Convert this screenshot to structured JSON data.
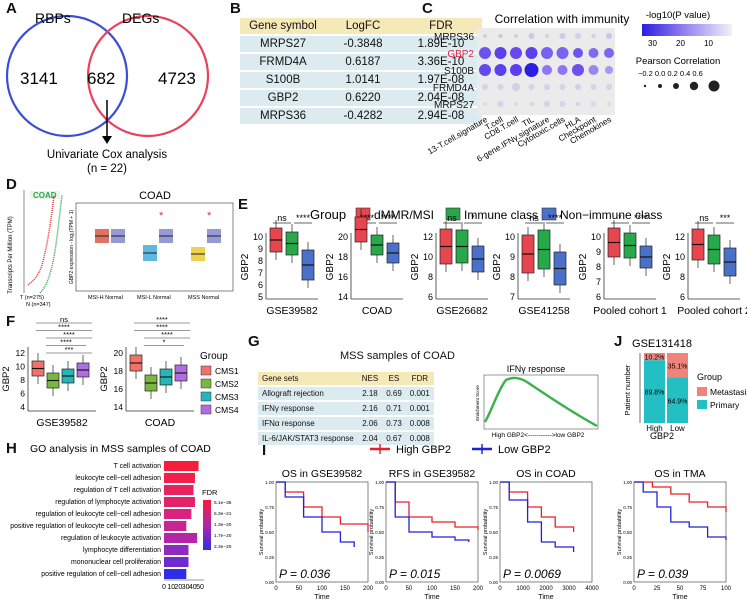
{
  "panels": {
    "A": "A",
    "B": "B",
    "C": "C",
    "D": "D",
    "E": "E",
    "F": "F",
    "G": "G",
    "H": "H",
    "I": "I",
    "J": "J"
  },
  "colors": {
    "red": "#e8464f",
    "green": "#27a84a",
    "blue": "#4a70c8",
    "rbp_circle": "#3b4fd6",
    "deg_circle": "#e8425f"
  },
  "venn": {
    "left_label": "RBPs",
    "right_label": "DEGs",
    "left_only": "3141",
    "overlap": "682",
    "right_only": "4723",
    "arrow_text": "Univariate Cox analysis",
    "arrow_subtext": "(n = 22)"
  },
  "table_b": {
    "headers": [
      "Gene symbol",
      "LogFC",
      "FDR"
    ],
    "rows": [
      [
        "MRPS27",
        "-0.3848",
        "1.89E-10"
      ],
      [
        "FRMD4A",
        "0.6187",
        "3.36E-10"
      ],
      [
        "S100B",
        "1.0141",
        "1.97E-08"
      ],
      [
        "GBP2",
        "0.6220",
        "2.04E-08"
      ],
      [
        "MRPS36",
        "-0.4282",
        "2.94E-08"
      ]
    ]
  },
  "panel_c": {
    "title": "Correlation with immunity",
    "genes": [
      "MRPS36",
      "GBP2",
      "S100B",
      "FRMD4A",
      "MRPS27"
    ],
    "signatures": [
      "13-T.cell.signature",
      "T.cell",
      "CD8.T.cell",
      "TIL",
      "6-gene.IFNγ.signature",
      "Cytotoxic.cells",
      "HLA",
      "Checkpoint",
      "Chemokines"
    ],
    "legend_title": "-log10(P value)",
    "legend_ticks": [
      "30",
      "20",
      "10"
    ],
    "size_title": "Pearson Correlation",
    "size_ticks": "−0.2 0.0 0.2 0.4 0.6"
  },
  "panel_d": {
    "ylabel": "Transcripts Per Million (TPM)",
    "cohort": "COAD",
    "t_label": "T (n=275)",
    "n_label": "N (n=347)",
    "box_title": "COAD",
    "box_ylabel": "GBP2 expression - log₂(TPM + 1)",
    "box_x": [
      "MSI-H Normal",
      "MSI-L Normal",
      "MSS Normal"
    ]
  },
  "legend_e": {
    "title": "Group",
    "items": [
      "dMMR/MSI",
      "Immune class",
      "Non−immune class"
    ]
  },
  "panel_e": [
    {
      "xlabel": "GSE39582",
      "ylabel": "GBP2",
      "ticks": [
        "10",
        "9",
        "8",
        "7",
        "6",
        "5"
      ],
      "sig": [
        "ns",
        "****"
      ],
      "has_green": true
    },
    {
      "xlabel": "COAD",
      "ylabel": "GBP2",
      "ticks": [
        "20",
        "18",
        "16",
        "14"
      ],
      "sig": [
        "****",
        "****"
      ],
      "has_green": true
    },
    {
      "xlabel": "GSE26682",
      "ylabel": "GBP2",
      "ticks": [
        "12",
        "10",
        "8",
        "6"
      ],
      "sig": [
        "ns",
        "*"
      ],
      "has_green": true
    },
    {
      "xlabel": "GSE41258",
      "ylabel": "GBP2",
      "ticks": [
        "10",
        "9",
        "8",
        "7"
      ],
      "sig": [
        "ns",
        "****"
      ],
      "has_green": true
    },
    {
      "xlabel": "Pooled cohort 1",
      "ylabel": "GBP2",
      "ticks": [
        "10",
        "9",
        "8",
        "7",
        "6"
      ],
      "sig": [
        "*",
        "****"
      ],
      "has_green": true
    },
    {
      "xlabel": "Pooled cohort 2",
      "ylabel": "GBP2",
      "ticks": [
        "12",
        "10",
        "8",
        "6"
      ],
      "sig": [
        "ns",
        "***"
      ],
      "has_green": true
    }
  ],
  "panel_f": {
    "plots": [
      {
        "xlabel": "GSE39582",
        "ylabel": "GBP2",
        "ticks": [
          "12",
          "10",
          "8",
          "6",
          "4"
        ],
        "sig": [
          "ns",
          "****",
          "****",
          "****",
          "***"
        ]
      },
      {
        "xlabel": "COAD",
        "ylabel": "GBP2",
        "ticks": [
          "20",
          "18",
          "16",
          "14"
        ],
        "sig": [
          "****",
          "****",
          "****",
          "*"
        ]
      }
    ],
    "legend_title": "Group",
    "legend_items": [
      "CMS1",
      "CMS2",
      "CMS3",
      "CMS4"
    ],
    "legend_colors": [
      "#f0736a",
      "#7ab640",
      "#27b5b8",
      "#b06fe0"
    ]
  },
  "panel_g": {
    "title": "MSS samples of COAD",
    "headers": [
      "Gene sets",
      "NES",
      "ES",
      "FDR"
    ],
    "rows": [
      [
        "Allograft rejection",
        "2.18",
        "0.69",
        "0.001"
      ],
      [
        "IFNγ response",
        "2.16",
        "0.71",
        "0.001"
      ],
      [
        "IFNα response",
        "2.06",
        "0.73",
        "0.008"
      ],
      [
        "IL-6/JAK/STAT3 response",
        "2.04",
        "0.67",
        "0.008"
      ]
    ],
    "gsea_title": "IFNγ  response",
    "gsea_ylabel": "Enrichment Score",
    "gsea_xlabel": "High GBP2<----------->low GBP2"
  },
  "panel_j": {
    "title": "GSE131418",
    "ylabel": "Patient number",
    "xlabel": "GBP2",
    "categories": [
      "High",
      "Low"
    ],
    "metastasis_pct": [
      "10.2%",
      "35.1%"
    ],
    "primary_pct": [
      "89.8%",
      "64.9%"
    ],
    "legend_title": "Group",
    "legend_items": [
      "Metastasis",
      "Primary"
    ]
  },
  "panel_h": {
    "title": "GO analysis in MSS samples of COAD",
    "terms": [
      "T cell activation",
      "leukocyte cell−cell adhesion",
      "regulation of T cell activation",
      "regulation of lymphocyte activation",
      "regulation of leukocyte cell−cell adhesion",
      "positive regulation of leukocyte cell−cell adhesion",
      "regulation of leukocyte activation",
      "lymphocyte differentiation",
      "mononuclear cell proliferation",
      "positive regulation of cell−cell adhesion"
    ],
    "counts": [
      48,
      43,
      41,
      43,
      38,
      31,
      46,
      34,
      34,
      31
    ],
    "xticks": [
      "0",
      "10",
      "20",
      "30",
      "40",
      "50"
    ],
    "legend_title": "FDR",
    "legend_ticks": [
      "5.1e−36",
      "5.3e−21",
      "1.3e−20",
      "1.7e−20",
      "2.3e−20"
    ]
  },
  "legend_i": {
    "high": "High GBP2",
    "low": "Low GBP2"
  },
  "panel_i": [
    {
      "title": "OS in GSE39582",
      "pval": "P = 0.036",
      "xticks": [
        "0",
        "50",
        "100",
        "150",
        "200"
      ],
      "xlabel": "Time",
      "ylabel": "Survival probability"
    },
    {
      "title": "RFS in GSE39582",
      "pval": "P = 0.015",
      "xticks": [
        "0",
        "50",
        "100",
        "150",
        "200"
      ],
      "xlabel": "Time",
      "ylabel": "Survival probability"
    },
    {
      "title": "OS in COAD",
      "pval": "P = 0.0069",
      "xticks": [
        "0",
        "1000",
        "2000",
        "3000",
        "4000"
      ],
      "xlabel": "Time",
      "ylabel": "Survival probability"
    },
    {
      "title": "OS in TMA",
      "pval": "P = 0.039",
      "xticks": [
        "0",
        "25",
        "50",
        "75",
        "100"
      ],
      "xlabel": "Time",
      "ylabel": "Survival probability"
    }
  ],
  "yticks_surv": [
    "1.00",
    "0.75",
    "0.50",
    "0.25",
    "0.00"
  ]
}
